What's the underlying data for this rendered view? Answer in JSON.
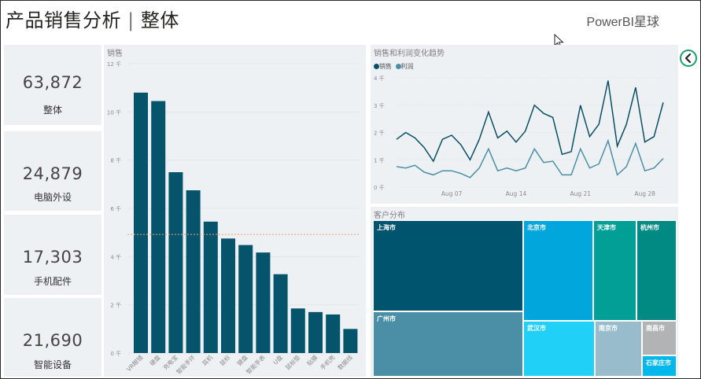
{
  "header": {
    "title_main": "产品销售分析",
    "title_sep": "|",
    "title_sub": "整体",
    "brand": "PowerBI星球"
  },
  "kpis": [
    {
      "value": "63,872",
      "label": "整体"
    },
    {
      "value": "24,879",
      "label": "电脑外设"
    },
    {
      "value": "17,303",
      "label": "手机配件"
    },
    {
      "value": "21,690",
      "label": "智能设备"
    }
  ],
  "bar_chart": {
    "title": "销售",
    "y_ticks": [
      "0 千",
      "2 千",
      "4 千",
      "6 千",
      "8 千",
      "10 千",
      "12 千"
    ]
  },
  "line_chart": {
    "title": "销售和利润变化趋势",
    "legend": [
      "销售",
      "利润"
    ],
    "y_ticks": [
      "0 千",
      "1 千",
      "2 千",
      "3 千",
      "4 千"
    ],
    "x_ticks": [
      "Aug 07",
      "Aug 14",
      "Aug 21",
      "Aug 28"
    ]
  },
  "treemap": {
    "title": "客户分布",
    "cells": [
      {
        "label": "上海市",
        "color": "#01546e"
      },
      {
        "label": "广州市",
        "color": "#4a8fa6"
      },
      {
        "label": "北京市",
        "color": "#01a6dc"
      },
      {
        "label": "天津市",
        "color": "#019f96"
      },
      {
        "label": "杭州市",
        "color": "#018a84"
      },
      {
        "label": "武汉市",
        "color": "#21d0f7"
      },
      {
        "label": "南京市",
        "color": "#98bccb"
      },
      {
        "label": "南昌市",
        "color": "#b2b3b5"
      },
      {
        "label": "石家庄市",
        "color": "#01b8eb"
      }
    ]
  },
  "chart_data": [
    {
      "type": "bar",
      "title": "销售",
      "categories": [
        "VR眼镜",
        "硬盘",
        "充电宝",
        "智能手环",
        "耳机",
        "鼠标",
        "键盘",
        "智能手表",
        "U盘",
        "鼠标垫",
        "贴膜",
        "手机壳",
        "数据线"
      ],
      "values": [
        10800,
        10450,
        7500,
        6750,
        5450,
        4750,
        4480,
        4170,
        3270,
        1850,
        1700,
        1600,
        1000
      ],
      "ylim": [
        0,
        12000
      ],
      "average_line": 4920,
      "colors": {
        "bar": "#05546c",
        "average": "#e8a07a"
      }
    },
    {
      "type": "line",
      "title": "销售和利润变化趋势",
      "x_start": "Aug 01",
      "series": [
        {
          "name": "销售",
          "color": "#0a4f66",
          "values": [
            1.75,
            2.0,
            1.8,
            1.45,
            0.95,
            1.75,
            1.9,
            1.55,
            1.0,
            1.75,
            2.75,
            1.8,
            2.05,
            1.65,
            2.05,
            3.0,
            2.7,
            2.55,
            1.2,
            1.3,
            3.0,
            1.85,
            2.3,
            3.9,
            1.5,
            2.3,
            3.65,
            1.65,
            1.85,
            3.1
          ]
        },
        {
          "name": "利润",
          "color": "#4a8fa6",
          "values": [
            0.75,
            0.7,
            0.8,
            0.55,
            0.45,
            0.6,
            0.6,
            0.5,
            0.35,
            0.7,
            1.4,
            0.6,
            0.7,
            0.6,
            0.7,
            1.4,
            0.9,
            0.95,
            0.45,
            0.45,
            1.4,
            0.7,
            0.85,
            1.7,
            0.45,
            0.75,
            1.6,
            0.6,
            0.7,
            1.05
          ]
        }
      ],
      "ylim": [
        0,
        4000
      ],
      "grid": true,
      "legend": "top-left"
    },
    {
      "type": "treemap",
      "title": "客户分布",
      "categories": [
        "上海市",
        "广州市",
        "北京市",
        "天津市",
        "杭州市",
        "武汉市",
        "南京市",
        "南昌市",
        "石家庄市"
      ]
    }
  ]
}
